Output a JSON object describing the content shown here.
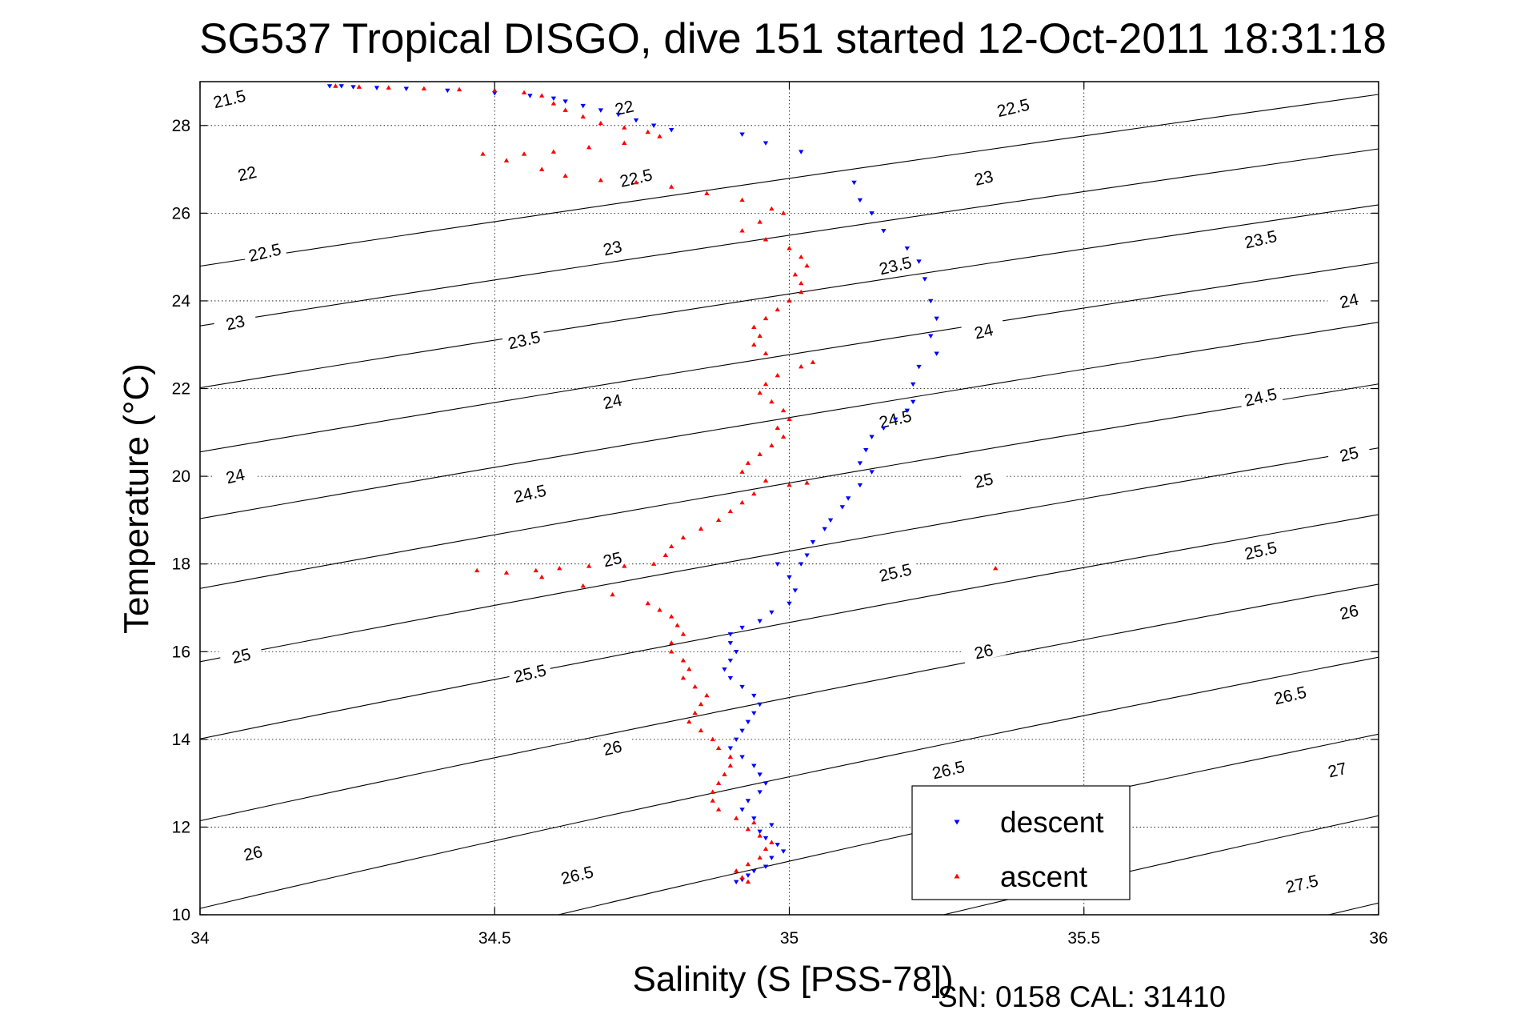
{
  "chart_data": {
    "type": "scatter",
    "title": "SG537 Tropical DISGO, dive 151 started 12-Oct-2011 18:31:18",
    "xlabel": "Salinity (S [PSS-78])",
    "ylabel": "Temperature (°C)",
    "footer": "SN: 0158  CAL: 31410",
    "xlim": [
      34,
      36
    ],
    "ylim": [
      10,
      29
    ],
    "xticks": [
      34,
      34.5,
      35,
      35.5,
      36
    ],
    "xtick_labels": [
      "34",
      "34.5",
      "35",
      "35.5",
      "36"
    ],
    "yticks": [
      10,
      12,
      14,
      16,
      18,
      20,
      22,
      24,
      26,
      28
    ],
    "ytick_labels": [
      "10",
      "12",
      "14",
      "16",
      "18",
      "20",
      "22",
      "24",
      "26",
      "28"
    ],
    "grid": true,
    "legend_position": "bottom-right",
    "contours": {
      "name": "sigma-theta isopycnals",
      "levels": [
        21.5,
        22,
        22.5,
        23,
        23.5,
        24,
        24.5,
        25,
        25.5,
        26,
        26.5,
        27,
        27.5
      ],
      "labels": [
        {
          "text": "21.5",
          "s": 34.05,
          "t": 28.6
        },
        {
          "text": "22",
          "s": 34.08,
          "t": 26.9
        },
        {
          "text": "22.5",
          "s": 34.11,
          "t": 25.1
        },
        {
          "text": "23",
          "s": 34.06,
          "t": 23.5
        },
        {
          "text": "24",
          "s": 34.06,
          "t": 20.0
        },
        {
          "text": "25",
          "s": 34.07,
          "t": 15.9
        },
        {
          "text": "26",
          "s": 34.09,
          "t": 11.4
        },
        {
          "text": "22",
          "s": 34.72,
          "t": 28.4
        },
        {
          "text": "22.5",
          "s": 34.74,
          "t": 26.8
        },
        {
          "text": "23",
          "s": 34.7,
          "t": 25.2
        },
        {
          "text": "23.5",
          "s": 34.55,
          "t": 23.1
        },
        {
          "text": "24",
          "s": 34.7,
          "t": 21.7
        },
        {
          "text": "24.5",
          "s": 34.56,
          "t": 19.6
        },
        {
          "text": "25",
          "s": 34.7,
          "t": 18.1
        },
        {
          "text": "25.5",
          "s": 34.56,
          "t": 15.5
        },
        {
          "text": "26",
          "s": 34.7,
          "t": 13.8
        },
        {
          "text": "26.5",
          "s": 34.64,
          "t": 10.9
        },
        {
          "text": "22.5",
          "s": 35.38,
          "t": 28.4
        },
        {
          "text": "23",
          "s": 35.33,
          "t": 26.8
        },
        {
          "text": "23.5",
          "s": 35.18,
          "t": 24.8
        },
        {
          "text": "24",
          "s": 35.33,
          "t": 23.3
        },
        {
          "text": "24.5",
          "s": 35.18,
          "t": 21.3
        },
        {
          "text": "25",
          "s": 35.33,
          "t": 19.9
        },
        {
          "text": "25.5",
          "s": 35.18,
          "t": 17.8
        },
        {
          "text": "26",
          "s": 35.33,
          "t": 16.0
        },
        {
          "text": "26.5",
          "s": 35.27,
          "t": 13.3
        },
        {
          "text": "23.5",
          "s": 35.8,
          "t": 25.4
        },
        {
          "text": "24",
          "s": 35.95,
          "t": 24.0
        },
        {
          "text": "24.5",
          "s": 35.8,
          "t": 21.8
        },
        {
          "text": "25",
          "s": 35.95,
          "t": 20.5
        },
        {
          "text": "25.5",
          "s": 35.8,
          "t": 18.3
        },
        {
          "text": "26",
          "s": 35.95,
          "t": 16.9
        },
        {
          "text": "26.5",
          "s": 35.85,
          "t": 15.0
        },
        {
          "text": "27",
          "s": 35.93,
          "t": 13.3
        },
        {
          "text": "27.5",
          "s": 35.87,
          "t": 10.7
        }
      ]
    },
    "series": [
      {
        "name": "descent",
        "color": "#0000ff",
        "marker": "triangle-down",
        "points": [
          [
            34.22,
            28.9
          ],
          [
            34.24,
            28.9
          ],
          [
            34.26,
            28.88
          ],
          [
            34.3,
            28.86
          ],
          [
            34.35,
            28.84
          ],
          [
            34.42,
            28.8
          ],
          [
            34.5,
            28.74
          ],
          [
            34.56,
            28.68
          ],
          [
            34.6,
            28.62
          ],
          [
            34.62,
            28.55
          ],
          [
            34.65,
            28.45
          ],
          [
            34.68,
            28.35
          ],
          [
            34.71,
            28.25
          ],
          [
            34.74,
            28.12
          ],
          [
            34.77,
            28.0
          ],
          [
            34.8,
            27.9
          ],
          [
            34.92,
            27.8
          ],
          [
            34.96,
            27.6
          ],
          [
            35.02,
            27.4
          ],
          [
            35.11,
            26.7
          ],
          [
            35.12,
            26.3
          ],
          [
            35.14,
            26.0
          ],
          [
            35.16,
            25.6
          ],
          [
            35.2,
            25.2
          ],
          [
            35.22,
            24.9
          ],
          [
            35.23,
            24.5
          ],
          [
            35.24,
            24.0
          ],
          [
            35.25,
            23.6
          ],
          [
            35.24,
            23.2
          ],
          [
            35.25,
            22.8
          ],
          [
            35.22,
            22.5
          ],
          [
            35.21,
            22.1
          ],
          [
            35.21,
            21.7
          ],
          [
            35.2,
            21.5
          ],
          [
            35.18,
            21.3
          ],
          [
            35.16,
            21.1
          ],
          [
            35.14,
            20.9
          ],
          [
            35.13,
            20.6
          ],
          [
            35.12,
            20.3
          ],
          [
            35.14,
            20.1
          ],
          [
            35.12,
            19.8
          ],
          [
            35.1,
            19.5
          ],
          [
            35.09,
            19.3
          ],
          [
            35.07,
            19.0
          ],
          [
            35.06,
            18.8
          ],
          [
            35.04,
            18.5
          ],
          [
            35.03,
            18.2
          ],
          [
            35.02,
            18.0
          ],
          [
            34.98,
            18.0
          ],
          [
            35.0,
            17.7
          ],
          [
            35.01,
            17.4
          ],
          [
            35.0,
            17.1
          ],
          [
            34.97,
            16.9
          ],
          [
            34.95,
            16.7
          ],
          [
            34.92,
            16.55
          ],
          [
            34.9,
            16.4
          ],
          [
            34.9,
            16.2
          ],
          [
            34.91,
            16.0
          ],
          [
            34.9,
            15.8
          ],
          [
            34.89,
            15.6
          ],
          [
            34.9,
            15.4
          ],
          [
            34.92,
            15.2
          ],
          [
            34.94,
            15.0
          ],
          [
            34.95,
            14.8
          ],
          [
            34.94,
            14.6
          ],
          [
            34.93,
            14.4
          ],
          [
            34.92,
            14.2
          ],
          [
            34.91,
            14.0
          ],
          [
            34.9,
            13.8
          ],
          [
            34.92,
            13.6
          ],
          [
            34.94,
            13.4
          ],
          [
            34.95,
            13.2
          ],
          [
            34.96,
            13.0
          ],
          [
            34.95,
            12.8
          ],
          [
            34.93,
            12.6
          ],
          [
            34.92,
            12.4
          ],
          [
            34.94,
            12.2
          ],
          [
            34.97,
            12.05
          ],
          [
            34.95,
            11.9
          ],
          [
            34.96,
            11.75
          ],
          [
            34.98,
            11.6
          ],
          [
            34.99,
            11.45
          ],
          [
            34.97,
            11.3
          ],
          [
            34.96,
            11.1
          ],
          [
            34.94,
            11.0
          ],
          [
            34.93,
            10.9
          ],
          [
            34.92,
            10.8
          ],
          [
            34.91,
            10.75
          ]
        ]
      },
      {
        "name": "ascent",
        "color": "#ff0000",
        "marker": "triangle-up",
        "points": [
          [
            34.23,
            28.9
          ],
          [
            34.27,
            28.88
          ],
          [
            34.32,
            28.86
          ],
          [
            34.38,
            28.84
          ],
          [
            34.44,
            28.82
          ],
          [
            34.5,
            28.8
          ],
          [
            34.55,
            28.75
          ],
          [
            34.58,
            28.68
          ],
          [
            34.6,
            28.5
          ],
          [
            34.62,
            28.35
          ],
          [
            34.65,
            28.2
          ],
          [
            34.68,
            28.05
          ],
          [
            34.72,
            27.95
          ],
          [
            34.76,
            27.85
          ],
          [
            34.78,
            27.75
          ],
          [
            34.72,
            27.6
          ],
          [
            34.66,
            27.5
          ],
          [
            34.6,
            27.4
          ],
          [
            34.55,
            27.35
          ],
          [
            34.48,
            27.35
          ],
          [
            34.52,
            27.2
          ],
          [
            34.58,
            27.0
          ],
          [
            34.62,
            26.85
          ],
          [
            34.68,
            26.75
          ],
          [
            34.74,
            26.7
          ],
          [
            34.8,
            26.6
          ],
          [
            34.86,
            26.45
          ],
          [
            34.92,
            26.3
          ],
          [
            34.97,
            26.1
          ],
          [
            34.99,
            26.0
          ],
          [
            34.95,
            25.8
          ],
          [
            34.92,
            25.6
          ],
          [
            34.96,
            25.4
          ],
          [
            35.0,
            25.2
          ],
          [
            35.02,
            25.0
          ],
          [
            35.03,
            24.8
          ],
          [
            35.01,
            24.6
          ],
          [
            35.02,
            24.4
          ],
          [
            35.02,
            24.2
          ],
          [
            35.0,
            24.0
          ],
          [
            34.98,
            23.8
          ],
          [
            34.96,
            23.6
          ],
          [
            34.94,
            23.4
          ],
          [
            34.95,
            23.2
          ],
          [
            34.94,
            23.0
          ],
          [
            34.96,
            22.8
          ],
          [
            35.04,
            22.6
          ],
          [
            35.02,
            22.5
          ],
          [
            34.98,
            22.3
          ],
          [
            34.96,
            22.1
          ],
          [
            34.95,
            21.9
          ],
          [
            34.97,
            21.7
          ],
          [
            34.99,
            21.5
          ],
          [
            35.0,
            21.3
          ],
          [
            34.98,
            21.1
          ],
          [
            34.99,
            20.9
          ],
          [
            34.97,
            20.7
          ],
          [
            34.95,
            20.5
          ],
          [
            34.93,
            20.3
          ],
          [
            34.92,
            20.1
          ],
          [
            34.96,
            19.9
          ],
          [
            35.03,
            19.85
          ],
          [
            35.0,
            19.8
          ],
          [
            34.94,
            19.6
          ],
          [
            34.92,
            19.4
          ],
          [
            34.9,
            19.2
          ],
          [
            34.88,
            19.0
          ],
          [
            34.85,
            18.8
          ],
          [
            34.82,
            18.6
          ],
          [
            34.8,
            18.4
          ],
          [
            34.79,
            18.2
          ],
          [
            34.77,
            18.0
          ],
          [
            34.72,
            17.95
          ],
          [
            34.66,
            17.95
          ],
          [
            34.61,
            17.9
          ],
          [
            34.57,
            17.85
          ],
          [
            34.52,
            17.8
          ],
          [
            34.47,
            17.85
          ],
          [
            34.58,
            17.7
          ],
          [
            34.65,
            17.5
          ],
          [
            34.7,
            17.3
          ],
          [
            34.76,
            17.1
          ],
          [
            34.78,
            16.95
          ],
          [
            34.8,
            16.8
          ],
          [
            34.81,
            16.6
          ],
          [
            34.82,
            16.4
          ],
          [
            34.8,
            16.2
          ],
          [
            34.8,
            16.0
          ],
          [
            34.82,
            15.8
          ],
          [
            34.83,
            15.6
          ],
          [
            34.82,
            15.4
          ],
          [
            34.84,
            15.2
          ],
          [
            34.86,
            15.0
          ],
          [
            34.85,
            14.8
          ],
          [
            34.84,
            14.6
          ],
          [
            34.83,
            14.4
          ],
          [
            34.85,
            14.2
          ],
          [
            34.87,
            14.0
          ],
          [
            34.88,
            13.8
          ],
          [
            34.9,
            13.6
          ],
          [
            34.9,
            13.4
          ],
          [
            34.89,
            13.2
          ],
          [
            34.88,
            13.0
          ],
          [
            34.87,
            12.8
          ],
          [
            34.87,
            12.6
          ],
          [
            34.88,
            12.4
          ],
          [
            34.91,
            12.2
          ],
          [
            34.94,
            12.1
          ],
          [
            34.93,
            11.95
          ],
          [
            34.95,
            11.8
          ],
          [
            34.97,
            11.65
          ],
          [
            34.96,
            11.5
          ],
          [
            34.95,
            11.3
          ],
          [
            34.93,
            11.15
          ],
          [
            34.91,
            11.0
          ],
          [
            34.92,
            10.85
          ],
          [
            34.93,
            10.75
          ],
          [
            35.35,
            17.9
          ]
        ]
      }
    ]
  }
}
